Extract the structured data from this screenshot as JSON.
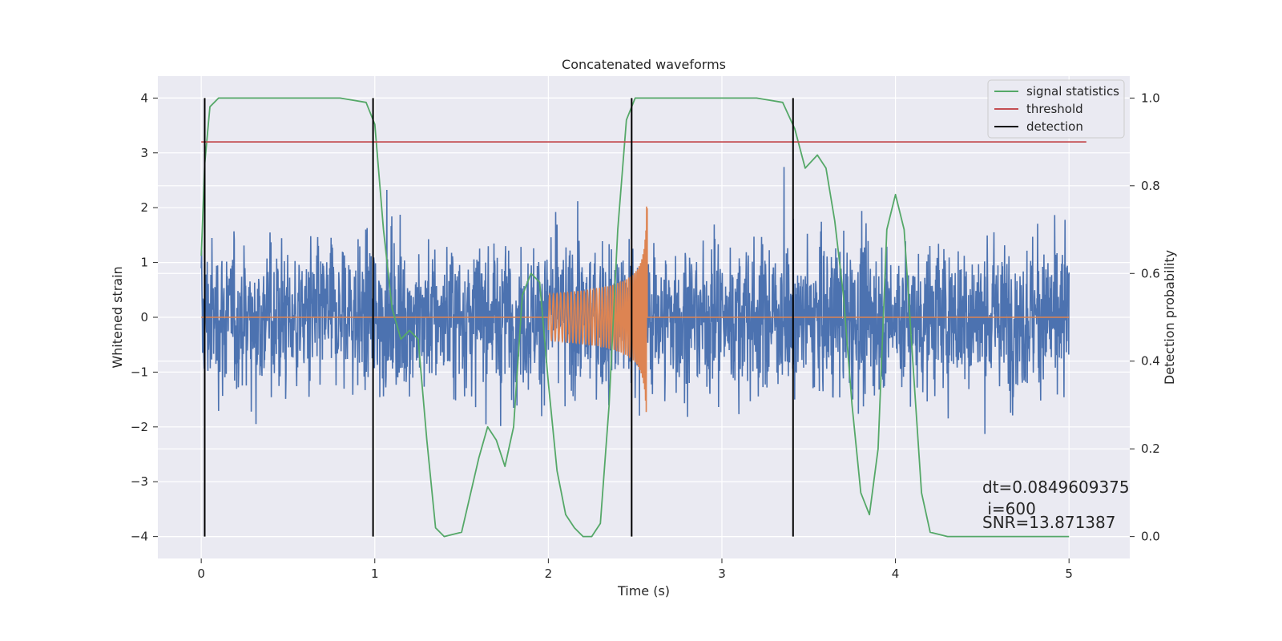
{
  "chart_data": {
    "type": "line",
    "title": "Concatenated waveforms",
    "xlabel": "Time (s)",
    "ylabel": "Whitened strain",
    "ylabel_right": "Detection probability",
    "xlim": [
      -0.25,
      5.35
    ],
    "ylim": [
      -4.4,
      4.4
    ],
    "ylim_right": [
      -0.05,
      1.05
    ],
    "x_ticks": [
      0,
      1,
      2,
      3,
      4,
      5
    ],
    "y_ticks": [
      4,
      3,
      2,
      1,
      0,
      -1,
      -2,
      -3,
      -4
    ],
    "y_tick_labels": [
      "4",
      "3",
      "2",
      "1",
      "0",
      "−1",
      "−2",
      "−3",
      "−4"
    ],
    "y2_ticks": [
      1.0,
      0.8,
      0.6,
      0.4,
      0.2,
      0.0
    ],
    "y2_tick_labels": [
      "1.0",
      "0.8",
      "0.6",
      "0.4",
      "0.2",
      "0.0"
    ],
    "grid": true,
    "legend_position": "top-right",
    "colors": {
      "background": "#eaeaf2",
      "grid": "#ffffff",
      "strain": "#4c72b0",
      "waveform": "#dd8452",
      "signal_statistics": "#55a868",
      "threshold": "#c44e52",
      "detection": "#000000"
    },
    "series": [
      {
        "name": "signal statistics",
        "axis": "right",
        "x": [
          0.0,
          0.02,
          0.05,
          0.1,
          0.2,
          0.5,
          0.8,
          0.95,
          1.0,
          1.05,
          1.1,
          1.15,
          1.2,
          1.25,
          1.3,
          1.35,
          1.4,
          1.5,
          1.6,
          1.65,
          1.7,
          1.75,
          1.8,
          1.85,
          1.9,
          1.95,
          2.0,
          2.05,
          2.1,
          2.15,
          2.2,
          2.25,
          2.3,
          2.35,
          2.4,
          2.45,
          2.5,
          2.55,
          2.6,
          2.8,
          3.0,
          3.2,
          3.35,
          3.42,
          3.48,
          3.55,
          3.6,
          3.65,
          3.7,
          3.75,
          3.8,
          3.85,
          3.9,
          3.95,
          4.0,
          4.05,
          4.1,
          4.15,
          4.2,
          4.3,
          4.5,
          5.0
        ],
        "y": [
          0.64,
          0.85,
          0.98,
          1.0,
          1.0,
          1.0,
          1.0,
          0.99,
          0.94,
          0.7,
          0.52,
          0.45,
          0.47,
          0.45,
          0.22,
          0.02,
          0.0,
          0.01,
          0.18,
          0.25,
          0.22,
          0.16,
          0.25,
          0.55,
          0.6,
          0.58,
          0.35,
          0.15,
          0.05,
          0.02,
          0.0,
          0.0,
          0.03,
          0.3,
          0.7,
          0.95,
          1.0,
          1.0,
          1.0,
          1.0,
          1.0,
          1.0,
          0.99,
          0.93,
          0.84,
          0.87,
          0.84,
          0.72,
          0.55,
          0.3,
          0.1,
          0.05,
          0.2,
          0.7,
          0.78,
          0.7,
          0.4,
          0.1,
          0.01,
          0.0,
          0.0,
          0.0
        ]
      },
      {
        "name": "threshold",
        "axis": "right",
        "x": [
          0.0,
          5.1
        ],
        "y": [
          0.9,
          0.9
        ]
      },
      {
        "name": "detection",
        "axis": "left",
        "type": "vlines",
        "x": [
          0.02,
          0.99,
          2.48,
          3.41
        ],
        "ymin": -4,
        "ymax": 4
      }
    ],
    "annotations": {
      "dt": "dt=0.0849609375",
      "i": " i=600",
      "snr": "SNR=13.871387"
    }
  }
}
